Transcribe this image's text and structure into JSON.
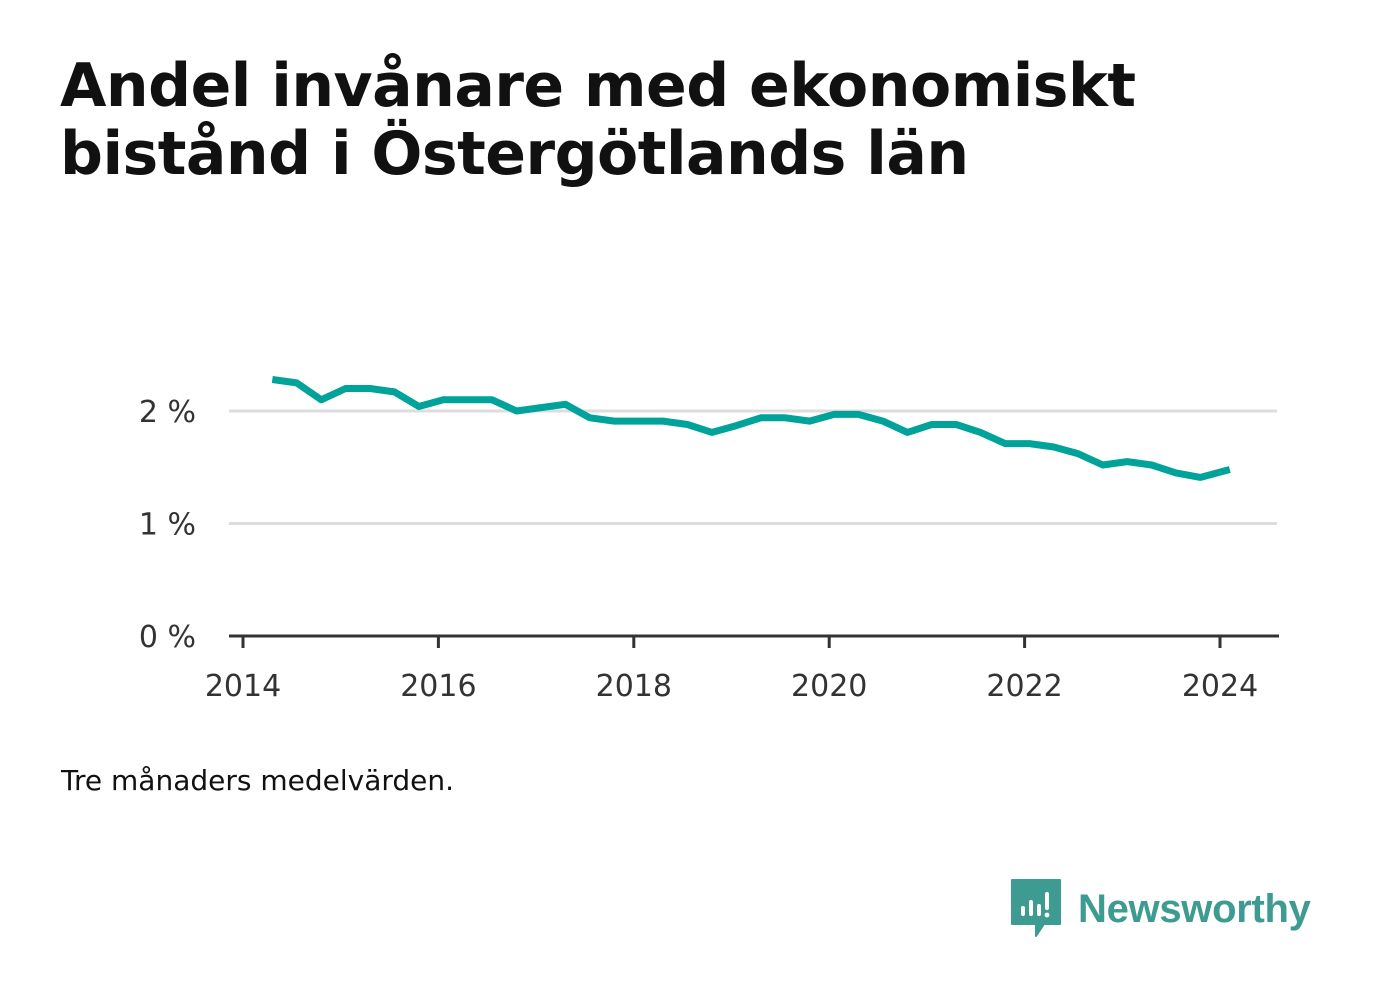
{
  "header": {
    "title": "Andel invånare med ekonomiskt bistånd i Östergötlands län"
  },
  "footer": {
    "note": "Tre månaders medelvärden.",
    "brand": "Newsworthy",
    "brand_icon": "newsworthy-logo-icon",
    "brand_color": "#3d9b92"
  },
  "chart_data": {
    "type": "line",
    "title": "Andel invånare med ekonomiskt bistånd i Östergötlands län",
    "xlabel": "",
    "ylabel": "",
    "x_ticks": [
      "2014",
      "2016",
      "2018",
      "2020",
      "2022",
      "2024"
    ],
    "y_ticks": [
      "0 %",
      "1 %",
      "2 %"
    ],
    "xlim": [
      2014.0,
      2024.3
    ],
    "ylim": [
      0,
      2.5
    ],
    "y_unit": "%",
    "grid": true,
    "legend": "none",
    "line_color": "#00a39a",
    "series": [
      {
        "x": [
          2014.3,
          2014.55,
          2014.8,
          2015.05,
          2015.3,
          2015.55,
          2015.8,
          2016.05,
          2016.3,
          2016.55,
          2016.8,
          2017.05,
          2017.3,
          2017.55,
          2017.8,
          2018.05,
          2018.3,
          2018.55,
          2018.8,
          2019.05,
          2019.3,
          2019.55,
          2019.8,
          2020.05,
          2020.3,
          2020.55,
          2020.8,
          2021.05,
          2021.3,
          2021.55,
          2021.8,
          2022.05,
          2022.3,
          2022.55,
          2022.8,
          2023.05,
          2023.3,
          2023.55,
          2023.8,
          2024.1
        ],
        "values": [
          2.28,
          2.25,
          2.1,
          2.2,
          2.2,
          2.17,
          2.04,
          2.1,
          2.1,
          2.1,
          2.0,
          2.03,
          2.06,
          1.94,
          1.91,
          1.91,
          1.91,
          1.88,
          1.81,
          1.87,
          1.94,
          1.94,
          1.91,
          1.97,
          1.97,
          1.91,
          1.81,
          1.88,
          1.88,
          1.81,
          1.71,
          1.71,
          1.68,
          1.62,
          1.52,
          1.55,
          1.52,
          1.45,
          1.41,
          1.48
        ]
      }
    ]
  }
}
